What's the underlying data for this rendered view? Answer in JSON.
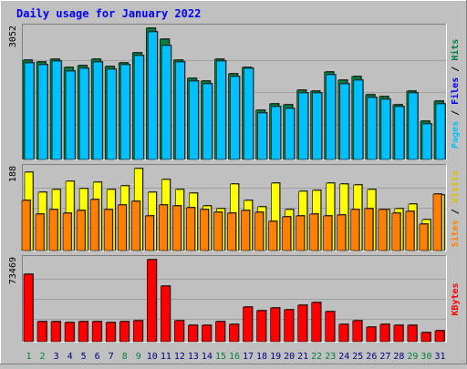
{
  "chart_data": {
    "type": "bar",
    "title": "Daily usage for January 2022",
    "categories": [
      "1",
      "2",
      "3",
      "4",
      "5",
      "6",
      "7",
      "8",
      "9",
      "10",
      "11",
      "12",
      "13",
      "14",
      "15",
      "16",
      "17",
      "18",
      "19",
      "20",
      "21",
      "22",
      "23",
      "24",
      "25",
      "26",
      "27",
      "28",
      "29",
      "30",
      "31"
    ],
    "weekend_days": [
      "1",
      "2",
      "8",
      "9",
      "15",
      "16",
      "22",
      "23",
      "29",
      "30"
    ],
    "panels": [
      {
        "name": "hits-files-pages",
        "ymax_label": "3052",
        "ymax": 3052,
        "side_labels": [
          "Pages",
          "Files",
          "Hits"
        ],
        "series": [
          {
            "name": "Hits",
            "color": "#008040",
            "values": [
              2300,
              2260,
              2330,
              2140,
              2190,
              2330,
              2160,
              2250,
              2480,
              3052,
              2800,
              2310,
              1890,
              1830,
              2340,
              2000,
              2150,
              1140,
              1290,
              1270,
              1610,
              1600,
              2040,
              1850,
              1930,
              1510,
              1460,
              1280,
              1590,
              880,
              1360
            ]
          },
          {
            "name": "Files",
            "color": "#00c0ff",
            "values": [
              2240,
              2200,
              2280,
              2060,
              2110,
              2270,
              2100,
              2200,
              2420,
              2970,
              2650,
              2260,
              1830,
              1750,
              2280,
              1920,
              2110,
              1080,
              1220,
              1190,
              1550,
              1550,
              1980,
              1760,
              1840,
              1450,
              1400,
              1220,
              1540,
              830,
              1300
            ]
          },
          {
            "name": "Pages",
            "color": "#00c0ff",
            "values": [
              0,
              0,
              0,
              0,
              0,
              0,
              0,
              0,
              0,
              0,
              0,
              0,
              0,
              0,
              0,
              0,
              0,
              0,
              0,
              0,
              0,
              0,
              0,
              0,
              0,
              0,
              0,
              0,
              0,
              0,
              0
            ]
          }
        ]
      },
      {
        "name": "visits-sites",
        "ymax_label": "188",
        "ymax": 188,
        "side_labels": [
          "Sites",
          "Visits"
        ],
        "series": [
          {
            "name": "Visits",
            "color": "#ffff00",
            "values": [
              180,
              133,
              140,
              158,
              142,
              157,
              139,
              148,
              188,
              133,
              163,
              140,
              132,
              102,
              97,
              153,
              115,
              100,
              154,
              94,
              135,
              138,
              154,
              153,
              151,
              140,
              94,
              97,
              106,
              70,
              128
            ]
          },
          {
            "name": "Sites",
            "color": "#ff8000",
            "values": [
              115,
              84,
              95,
              86,
              92,
              116,
              93,
              105,
              112,
              79,
              105,
              102,
              99,
              93,
              87,
              85,
              92,
              88,
              67,
              77,
              79,
              83,
              80,
              82,
              93,
              96,
              93,
              85,
              89,
              61,
              130
            ]
          }
        ]
      },
      {
        "name": "kbytes",
        "ymax_label": "73469",
        "ymax": 73469,
        "side_labels": [
          "KBytes"
        ],
        "series": [
          {
            "name": "KBytes",
            "color": "#ff0000",
            "values": [
              60000,
              18100,
              18100,
              17000,
              18100,
              18100,
              17000,
              18100,
              19000,
              73469,
              50000,
              19000,
              14500,
              14500,
              18100,
              15500,
              31000,
              28000,
              30000,
              28500,
              32500,
              35500,
              27000,
              15500,
              19000,
              13000,
              15500,
              15000,
              15000,
              8500,
              10000
            ]
          }
        ]
      }
    ]
  }
}
